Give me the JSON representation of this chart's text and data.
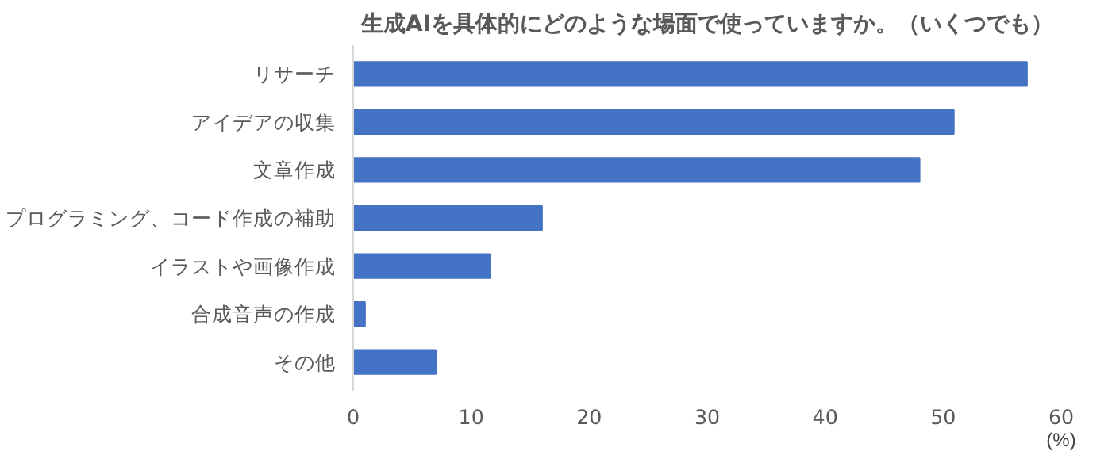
{
  "chart_data": {
    "type": "bar",
    "orientation": "horizontal",
    "title": "生成AIを具体的にどのような場面で使っていますか。（いくつでも）",
    "categories": [
      "リサーチ",
      "アイデアの収集",
      "文章作成",
      "プログラミング、コード作成の補助",
      "イラストや画像作成",
      "合成音声の作成",
      "その他"
    ],
    "values": [
      57.1,
      50.9,
      48.0,
      16.0,
      11.6,
      1.0,
      7.0
    ],
    "color": "#4472c4",
    "xlim": [
      0,
      60
    ],
    "xticks": [
      0,
      10,
      20,
      30,
      40,
      50,
      60
    ],
    "xlabel": "(%)",
    "grid": false
  }
}
